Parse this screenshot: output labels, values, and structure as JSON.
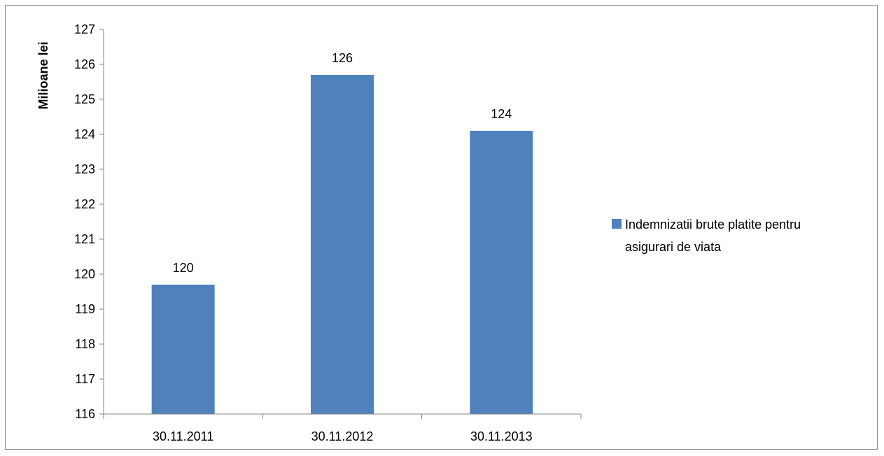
{
  "chart_data": {
    "type": "bar",
    "categories": [
      "30.11.2011",
      "30.11.2012",
      "30.11.2013"
    ],
    "series": [
      {
        "name": "Indemnizatii brute platite pentru asigurari de viata",
        "values": [
          119.7,
          125.7,
          124.1
        ],
        "data_labels": [
          "120",
          "126",
          "124"
        ],
        "color": "#4f81bd"
      }
    ],
    "xlabel": "",
    "ylabel": "Milioane lei",
    "ylim": [
      116,
      127
    ],
    "yticks": [
      116,
      117,
      118,
      119,
      120,
      121,
      122,
      123,
      124,
      125,
      126,
      127
    ],
    "grid": false,
    "legend_position": "right",
    "legend_lines": [
      "Indemnizatii brute platite pentru",
      "asigurari de viata"
    ]
  }
}
